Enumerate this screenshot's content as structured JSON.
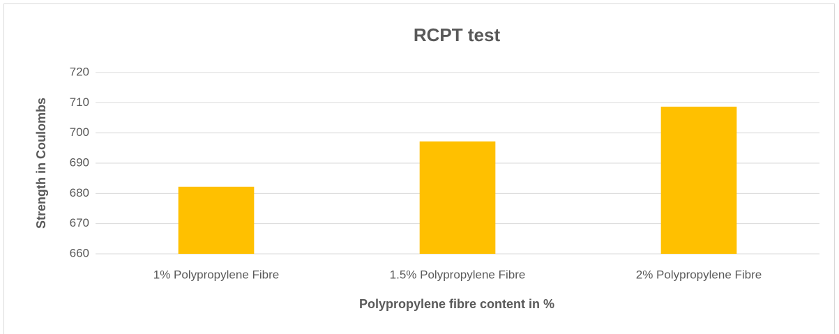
{
  "chart_data": {
    "type": "bar",
    "title": "RCPT test",
    "x_label": "Polypropylene fibre content in %",
    "y_label": "Strength in Coulombs",
    "categories": [
      "1% Polypropylene Fibre",
      "1.5% Polypropylene Fibre",
      "2% Polypropylene Fibre"
    ],
    "values": [
      682.2,
      697.2,
      708.7
    ],
    "color": "#ffc000",
    "ylim": [
      660,
      720
    ],
    "yticks": [
      660,
      670,
      680,
      690,
      700,
      710,
      720
    ],
    "grid": true
  }
}
